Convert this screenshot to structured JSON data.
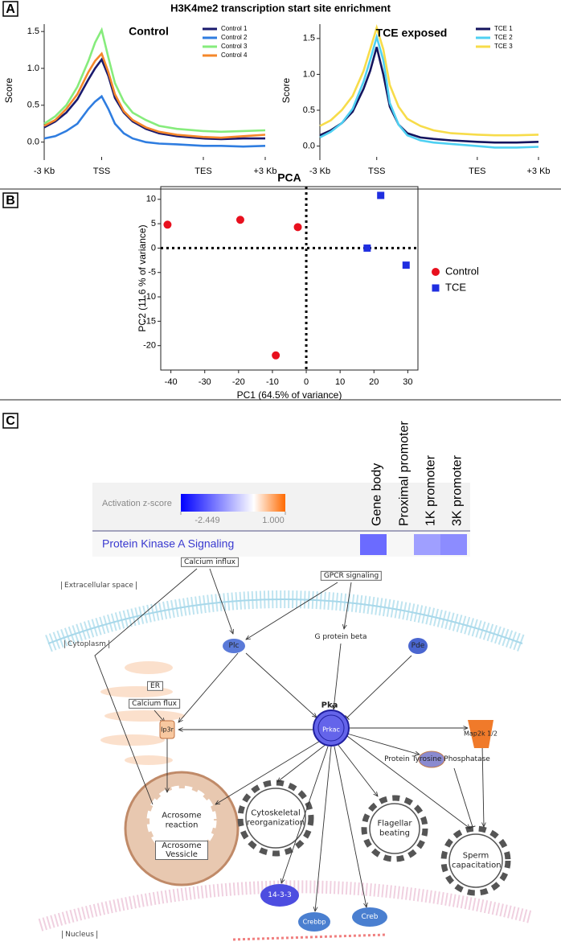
{
  "figure_title": "H3K4me2 transcription start site enrichment",
  "panel_labels": [
    "A",
    "B",
    "C"
  ],
  "chart_data": [
    {
      "type": "line",
      "title": "Control",
      "ylabel": "Score",
      "x": [
        0,
        5,
        10,
        15,
        20,
        23,
        26,
        29,
        32,
        36,
        40,
        46,
        52,
        60,
        72,
        80,
        90,
        100
      ],
      "xlim": [
        0,
        100
      ],
      "xticks": [
        {
          "value": 0,
          "label": "-3 Kb"
        },
        {
          "value": 26,
          "label": "TSS"
        },
        {
          "value": 72,
          "label": "TES"
        },
        {
          "value": 100,
          "label": "+3 Kb"
        }
      ],
      "ylim": [
        -0.2,
        1.6
      ],
      "yticks": [
        {
          "value": 0,
          "label": "0.0"
        },
        0.5,
        {
          "value": 1,
          "label": "1.0"
        },
        1.5
      ],
      "legend": "upper right",
      "series": [
        {
          "name": "Control 1",
          "color": "#1a1a6e",
          "values": [
            0.2,
            0.28,
            0.4,
            0.58,
            0.85,
            1.0,
            1.12,
            0.9,
            0.6,
            0.4,
            0.28,
            0.18,
            0.12,
            0.08,
            0.05,
            0.04,
            0.05,
            0.05
          ]
        },
        {
          "name": "Control 2",
          "color": "#2f7de0",
          "values": [
            0.05,
            0.08,
            0.15,
            0.25,
            0.45,
            0.55,
            0.62,
            0.45,
            0.25,
            0.12,
            0.05,
            0.0,
            -0.02,
            -0.03,
            -0.05,
            -0.05,
            -0.06,
            -0.05
          ]
        },
        {
          "name": "Control 3",
          "color": "#86ec7c",
          "values": [
            0.25,
            0.35,
            0.5,
            0.75,
            1.1,
            1.35,
            1.52,
            1.15,
            0.8,
            0.55,
            0.4,
            0.3,
            0.22,
            0.18,
            0.15,
            0.14,
            0.15,
            0.16
          ]
        },
        {
          "name": "Control 4",
          "color": "#f5872a",
          "values": [
            0.22,
            0.3,
            0.45,
            0.65,
            0.95,
            1.1,
            1.2,
            0.95,
            0.65,
            0.42,
            0.3,
            0.2,
            0.14,
            0.1,
            0.07,
            0.06,
            0.08,
            0.1
          ]
        }
      ]
    },
    {
      "type": "line",
      "title": "TCE exposed",
      "ylabel": "Score",
      "x": [
        0,
        5,
        10,
        15,
        20,
        23,
        26,
        29,
        32,
        36,
        40,
        46,
        52,
        60,
        72,
        80,
        90,
        100
      ],
      "xlim": [
        0,
        100
      ],
      "xticks": [
        {
          "value": 0,
          "label": "-3 Kb"
        },
        {
          "value": 26,
          "label": "TSS"
        },
        {
          "value": 72,
          "label": "TES"
        },
        {
          "value": 100,
          "label": "+3 Kb"
        }
      ],
      "ylim": [
        -0.15,
        1.7
      ],
      "yticks": [
        {
          "value": 0,
          "label": "0.0"
        },
        0.5,
        {
          "value": 1,
          "label": "1.0"
        },
        1.5
      ],
      "legend": "upper right",
      "series": [
        {
          "name": "TCE 1",
          "color": "#14145e",
          "values": [
            0.15,
            0.22,
            0.32,
            0.48,
            0.8,
            1.05,
            1.38,
            1.0,
            0.55,
            0.3,
            0.18,
            0.12,
            0.1,
            0.08,
            0.06,
            0.05,
            0.05,
            0.06
          ]
        },
        {
          "name": "TCE 2",
          "color": "#4fd0f2",
          "values": [
            0.12,
            0.2,
            0.32,
            0.52,
            0.9,
            1.2,
            1.52,
            1.2,
            0.6,
            0.3,
            0.15,
            0.08,
            0.05,
            0.03,
            0.0,
            -0.02,
            -0.02,
            -0.01
          ]
        },
        {
          "name": "TCE 3",
          "color": "#f7dc4a",
          "values": [
            0.28,
            0.36,
            0.5,
            0.7,
            1.05,
            1.35,
            1.65,
            1.35,
            0.85,
            0.55,
            0.38,
            0.28,
            0.22,
            0.18,
            0.16,
            0.15,
            0.15,
            0.16
          ]
        }
      ]
    },
    {
      "type": "scatter",
      "title": "PCA",
      "xlabel": "PC1 (64.5% of variance)",
      "ylabel": "PC2 (11.6 % of variance)",
      "xlim": [
        -43,
        33
      ],
      "xticks": [
        -40,
        -30,
        -20,
        -10,
        0,
        10,
        20,
        30
      ],
      "ylim": [
        -25,
        12.6
      ],
      "yticks": [
        -20,
        -15,
        -10,
        -5,
        0,
        5,
        10
      ],
      "legend": "right",
      "series": [
        {
          "name": "Control",
          "color": "#e8101e",
          "marker": "circle",
          "x": [
            -41,
            -19.5,
            -2.5,
            -9
          ],
          "values": [
            4.8,
            5.8,
            4.3,
            -22
          ]
        },
        {
          "name": "TCE",
          "color": "#1f2ee0",
          "marker": "square",
          "x": [
            18,
            22,
            29.5
          ],
          "values": [
            0,
            10.8,
            -3.5
          ]
        }
      ]
    }
  ],
  "diagram": {
    "heatmap": {
      "colorbar_title": "Activation z-score",
      "range": [
        {
          "value": -2.449,
          "label": "-2.449"
        },
        {
          "value": 1,
          "label": "1.000"
        }
      ],
      "columns": [
        "Gene body",
        "Proximal promoter",
        "1K promoter",
        "3K promoter"
      ],
      "rows": [
        {
          "name": "Protein Kinase A Signaling",
          "values": [
            -1.42,
            null,
            -0.92,
            -1.1
          ]
        }
      ]
    },
    "nodes": [
      "Calcium influx",
      "GPCR signaling",
      "Extracellular space",
      "Cytoplasm",
      "Plc",
      "G protein beta",
      "Pde",
      "ER",
      "Calcium flux",
      "Pka",
      "Prkac",
      "Ip3r",
      "Map2k 1/2",
      "Protein Tyrosine Phosphatase",
      "Acrosome reaction",
      "Acrosome Vessicle",
      "Cytoskeletal reorganization",
      "Flagellar beating",
      "Sperm capacitation",
      "14-3-3",
      "Crebbp",
      "Creb",
      "Nucleus"
    ]
  }
}
